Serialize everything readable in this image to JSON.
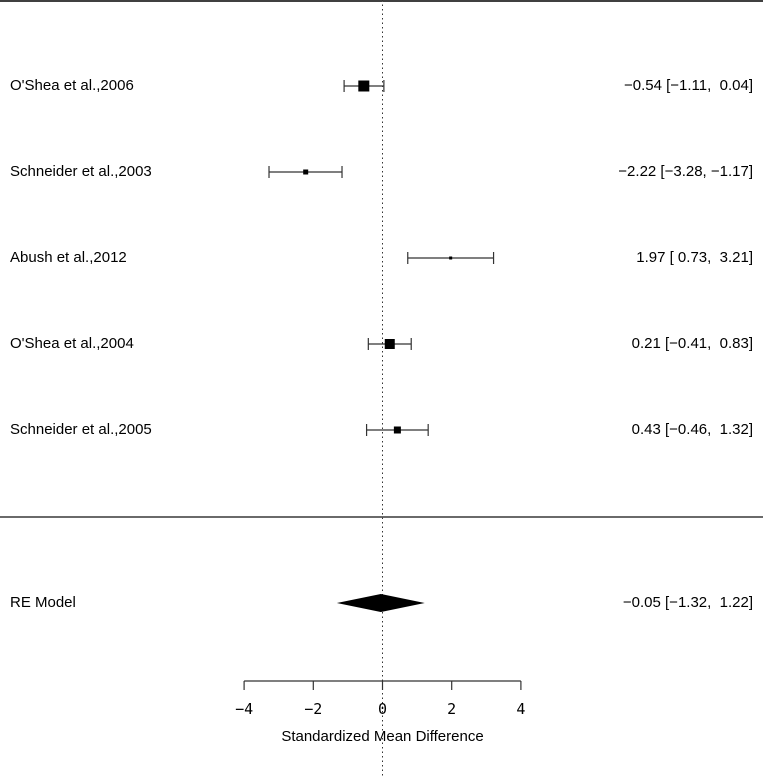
{
  "chart_data": {
    "type": "forest",
    "title": "",
    "xlabel": "Standardized Mean Difference",
    "ylabel": "",
    "xlim": [
      -4,
      4
    ],
    "x_ticks": [
      "−4",
      "−2",
      "0",
      "2",
      "4"
    ],
    "reference_line": 0,
    "studies": [
      {
        "label": "O'Shea et al.,2006",
        "estimate": -0.54,
        "ci_low": -1.11,
        "ci_high": 0.04,
        "text": "−0.54 [−1.11,  0.04]"
      },
      {
        "label": "Schneider et al.,2003",
        "estimate": -2.22,
        "ci_low": -3.28,
        "ci_high": -1.17,
        "text": "−2.22 [−3.28, −1.17]"
      },
      {
        "label": "Abush et al.,2012",
        "estimate": 1.97,
        "ci_low": 0.73,
        "ci_high": 3.21,
        "text": "1.97 [ 0.73,  3.21]"
      },
      {
        "label": "O'Shea et al.,2004",
        "estimate": 0.21,
        "ci_low": -0.41,
        "ci_high": 0.83,
        "text": "0.21 [−0.41,  0.83]"
      },
      {
        "label": "Schneider et al.,2005",
        "estimate": 0.43,
        "ci_low": -0.46,
        "ci_high": 1.32,
        "text": "0.43 [−0.46,  1.32]"
      }
    ],
    "summary": {
      "label": "RE Model",
      "estimate": -0.05,
      "ci_low": -1.32,
      "ci_high": 1.22,
      "text": "−0.05 [−1.32,  1.22]"
    }
  }
}
